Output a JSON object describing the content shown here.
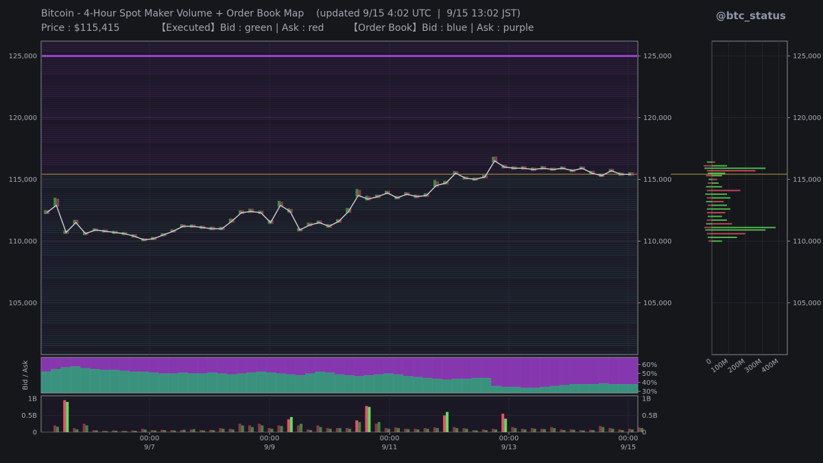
{
  "header": {
    "title": "Bitcoin - 4-Hour Spot Maker Volume + Order Book Map    (updated 9/15 4:02 UTC  |  9/15 13:02 JST)",
    "subtitle": "Price : $115,415            【Executed】Bid : green | Ask : red        【Order Book】Bid : blue | Ask : purple",
    "handle": "@btc_status"
  },
  "colors": {
    "background": "#16171b",
    "bid_executed": "#5ee05a",
    "ask_executed": "#e8506a",
    "book_bid": "#3fa88e",
    "book_ask": "#a040d0",
    "price_line": "#c9c9d0",
    "current_price": "#b4a23c"
  },
  "chart_data": [
    {
      "id": "price",
      "type": "line",
      "title": "",
      "ylim": [
        100800,
        126200
      ],
      "y_ticks": [
        "105,000",
        "110,000",
        "115,000",
        "120,000",
        "125,000"
      ],
      "y_tick_values": [
        105000,
        110000,
        115000,
        120000,
        125000
      ],
      "x_ticks": [
        {
          "time": "00:00",
          "date": "9/7"
        },
        {
          "time": "00:00",
          "date": "9/9"
        },
        {
          "time": "00:00",
          "date": "9/11"
        },
        {
          "time": "00:00",
          "date": "9/13"
        },
        {
          "time": "00:00",
          "date": "9/15"
        }
      ],
      "current_price": 115415,
      "ask_wall": 125000,
      "close": [
        112300,
        112900,
        110700,
        111500,
        110600,
        110900,
        110800,
        110700,
        110600,
        110400,
        110100,
        110200,
        110500,
        110800,
        111200,
        111200,
        111100,
        111000,
        111000,
        111600,
        112300,
        112400,
        112300,
        111500,
        112900,
        112400,
        110900,
        111300,
        111500,
        111200,
        111600,
        112400,
        113700,
        113400,
        113600,
        113900,
        113500,
        113800,
        113600,
        113700,
        114500,
        114700,
        115500,
        115100,
        115000,
        115200,
        116500,
        116000,
        115900,
        115900,
        115800,
        115900,
        115800,
        115900,
        115700,
        115900,
        115500,
        115300,
        115700,
        115400,
        115400
      ]
    },
    {
      "id": "bid_ask_ratio",
      "type": "area",
      "ylabel": "Bid / Ask",
      "ylim": [
        0.28,
        0.68
      ],
      "y_ticks": [
        "60%",
        "50%",
        "40%",
        "30%"
      ],
      "y_tick_values": [
        0.6,
        0.5,
        0.4,
        0.3
      ],
      "bid_share": [
        0.52,
        0.55,
        0.57,
        0.58,
        0.56,
        0.55,
        0.54,
        0.54,
        0.53,
        0.52,
        0.52,
        0.51,
        0.5,
        0.5,
        0.51,
        0.5,
        0.5,
        0.51,
        0.5,
        0.49,
        0.5,
        0.51,
        0.52,
        0.51,
        0.5,
        0.49,
        0.48,
        0.5,
        0.52,
        0.51,
        0.49,
        0.48,
        0.47,
        0.48,
        0.49,
        0.5,
        0.49,
        0.47,
        0.46,
        0.45,
        0.44,
        0.43,
        0.44,
        0.44,
        0.45,
        0.45,
        0.36,
        0.35,
        0.35,
        0.34,
        0.34,
        0.35,
        0.36,
        0.37,
        0.38,
        0.38,
        0.38,
        0.39,
        0.38,
        0.38,
        0.38
      ]
    },
    {
      "id": "volume",
      "type": "bar",
      "ylim": [
        0,
        1.0
      ],
      "y_ticks": [
        "0",
        "0.5B",
        "1B"
      ],
      "y_tick_values": [
        0,
        0.5,
        1.0
      ],
      "unit": "B",
      "bid_volume": [
        0.16,
        0.9,
        0.08,
        0.2,
        0.05,
        0.03,
        0.04,
        0.03,
        0.04,
        0.08,
        0.05,
        0.06,
        0.05,
        0.07,
        0.09,
        0.05,
        0.06,
        0.1,
        0.08,
        0.2,
        0.15,
        0.2,
        0.1,
        0.18,
        0.45,
        0.25,
        0.06,
        0.15,
        0.1,
        0.12,
        0.1,
        0.3,
        0.75,
        0.3,
        0.1,
        0.12,
        0.09,
        0.08,
        0.1,
        0.12,
        0.6,
        0.12,
        0.1,
        0.05,
        0.06,
        0.08,
        0.4,
        0.12,
        0.08,
        0.1,
        0.09,
        0.12,
        0.06,
        0.07,
        0.05,
        0.06,
        0.15,
        0.1,
        0.06,
        0.08,
        0.12
      ],
      "ask_volume": [
        0.2,
        0.95,
        0.12,
        0.25,
        0.06,
        0.04,
        0.05,
        0.04,
        0.05,
        0.1,
        0.06,
        0.07,
        0.06,
        0.06,
        0.08,
        0.06,
        0.07,
        0.12,
        0.1,
        0.25,
        0.2,
        0.25,
        0.12,
        0.2,
        0.38,
        0.2,
        0.08,
        0.2,
        0.12,
        0.12,
        0.12,
        0.35,
        0.78,
        0.25,
        0.12,
        0.14,
        0.1,
        0.1,
        0.12,
        0.14,
        0.5,
        0.15,
        0.12,
        0.06,
        0.08,
        0.1,
        0.55,
        0.15,
        0.1,
        0.12,
        0.1,
        0.15,
        0.08,
        0.08,
        0.06,
        0.07,
        0.18,
        0.12,
        0.08,
        0.1,
        0.14
      ]
    },
    {
      "id": "volume_profile",
      "type": "bar",
      "orientation": "horizontal",
      "ylim": [
        100800,
        126200
      ],
      "xlim": [
        0,
        450
      ],
      "x_ticks": [
        "0",
        "100M",
        "200M",
        "300M",
        "400M"
      ],
      "x_tick_values": [
        0,
        100,
        200,
        300,
        400
      ],
      "y_ticks": [
        "105,000",
        "110,000",
        "115,000",
        "120,000",
        "125,000"
      ],
      "y_tick_values": [
        105000,
        110000,
        115000,
        120000,
        125000
      ],
      "unit": "M",
      "levels": [
        {
          "price": 116400,
          "left": 30,
          "right": 20
        },
        {
          "price": 116100,
          "left": 50,
          "right": 90
        },
        {
          "price": 115900,
          "left": 45,
          "right": 320
        },
        {
          "price": 115700,
          "left": 30,
          "right": 260
        },
        {
          "price": 115500,
          "left": 25,
          "right": 80
        },
        {
          "price": 115300,
          "left": 35,
          "right": 60
        },
        {
          "price": 115000,
          "left": 20,
          "right": 30
        },
        {
          "price": 114700,
          "left": 25,
          "right": 40
        },
        {
          "price": 114400,
          "left": 35,
          "right": 60
        },
        {
          "price": 114100,
          "left": 30,
          "right": 170
        },
        {
          "price": 113800,
          "left": 40,
          "right": 90
        },
        {
          "price": 113500,
          "left": 30,
          "right": 110
        },
        {
          "price": 113200,
          "left": 35,
          "right": 70
        },
        {
          "price": 112900,
          "left": 25,
          "right": 90
        },
        {
          "price": 112600,
          "left": 30,
          "right": 110
        },
        {
          "price": 112300,
          "left": 30,
          "right": 80
        },
        {
          "price": 112000,
          "left": 25,
          "right": 60
        },
        {
          "price": 111700,
          "left": 30,
          "right": 90
        },
        {
          "price": 111400,
          "left": 35,
          "right": 120
        },
        {
          "price": 111100,
          "left": 45,
          "right": 380
        },
        {
          "price": 110900,
          "left": 40,
          "right": 320
        },
        {
          "price": 110600,
          "left": 30,
          "right": 200
        },
        {
          "price": 110300,
          "left": 25,
          "right": 150
        },
        {
          "price": 110000,
          "left": 20,
          "right": 60
        }
      ]
    }
  ]
}
